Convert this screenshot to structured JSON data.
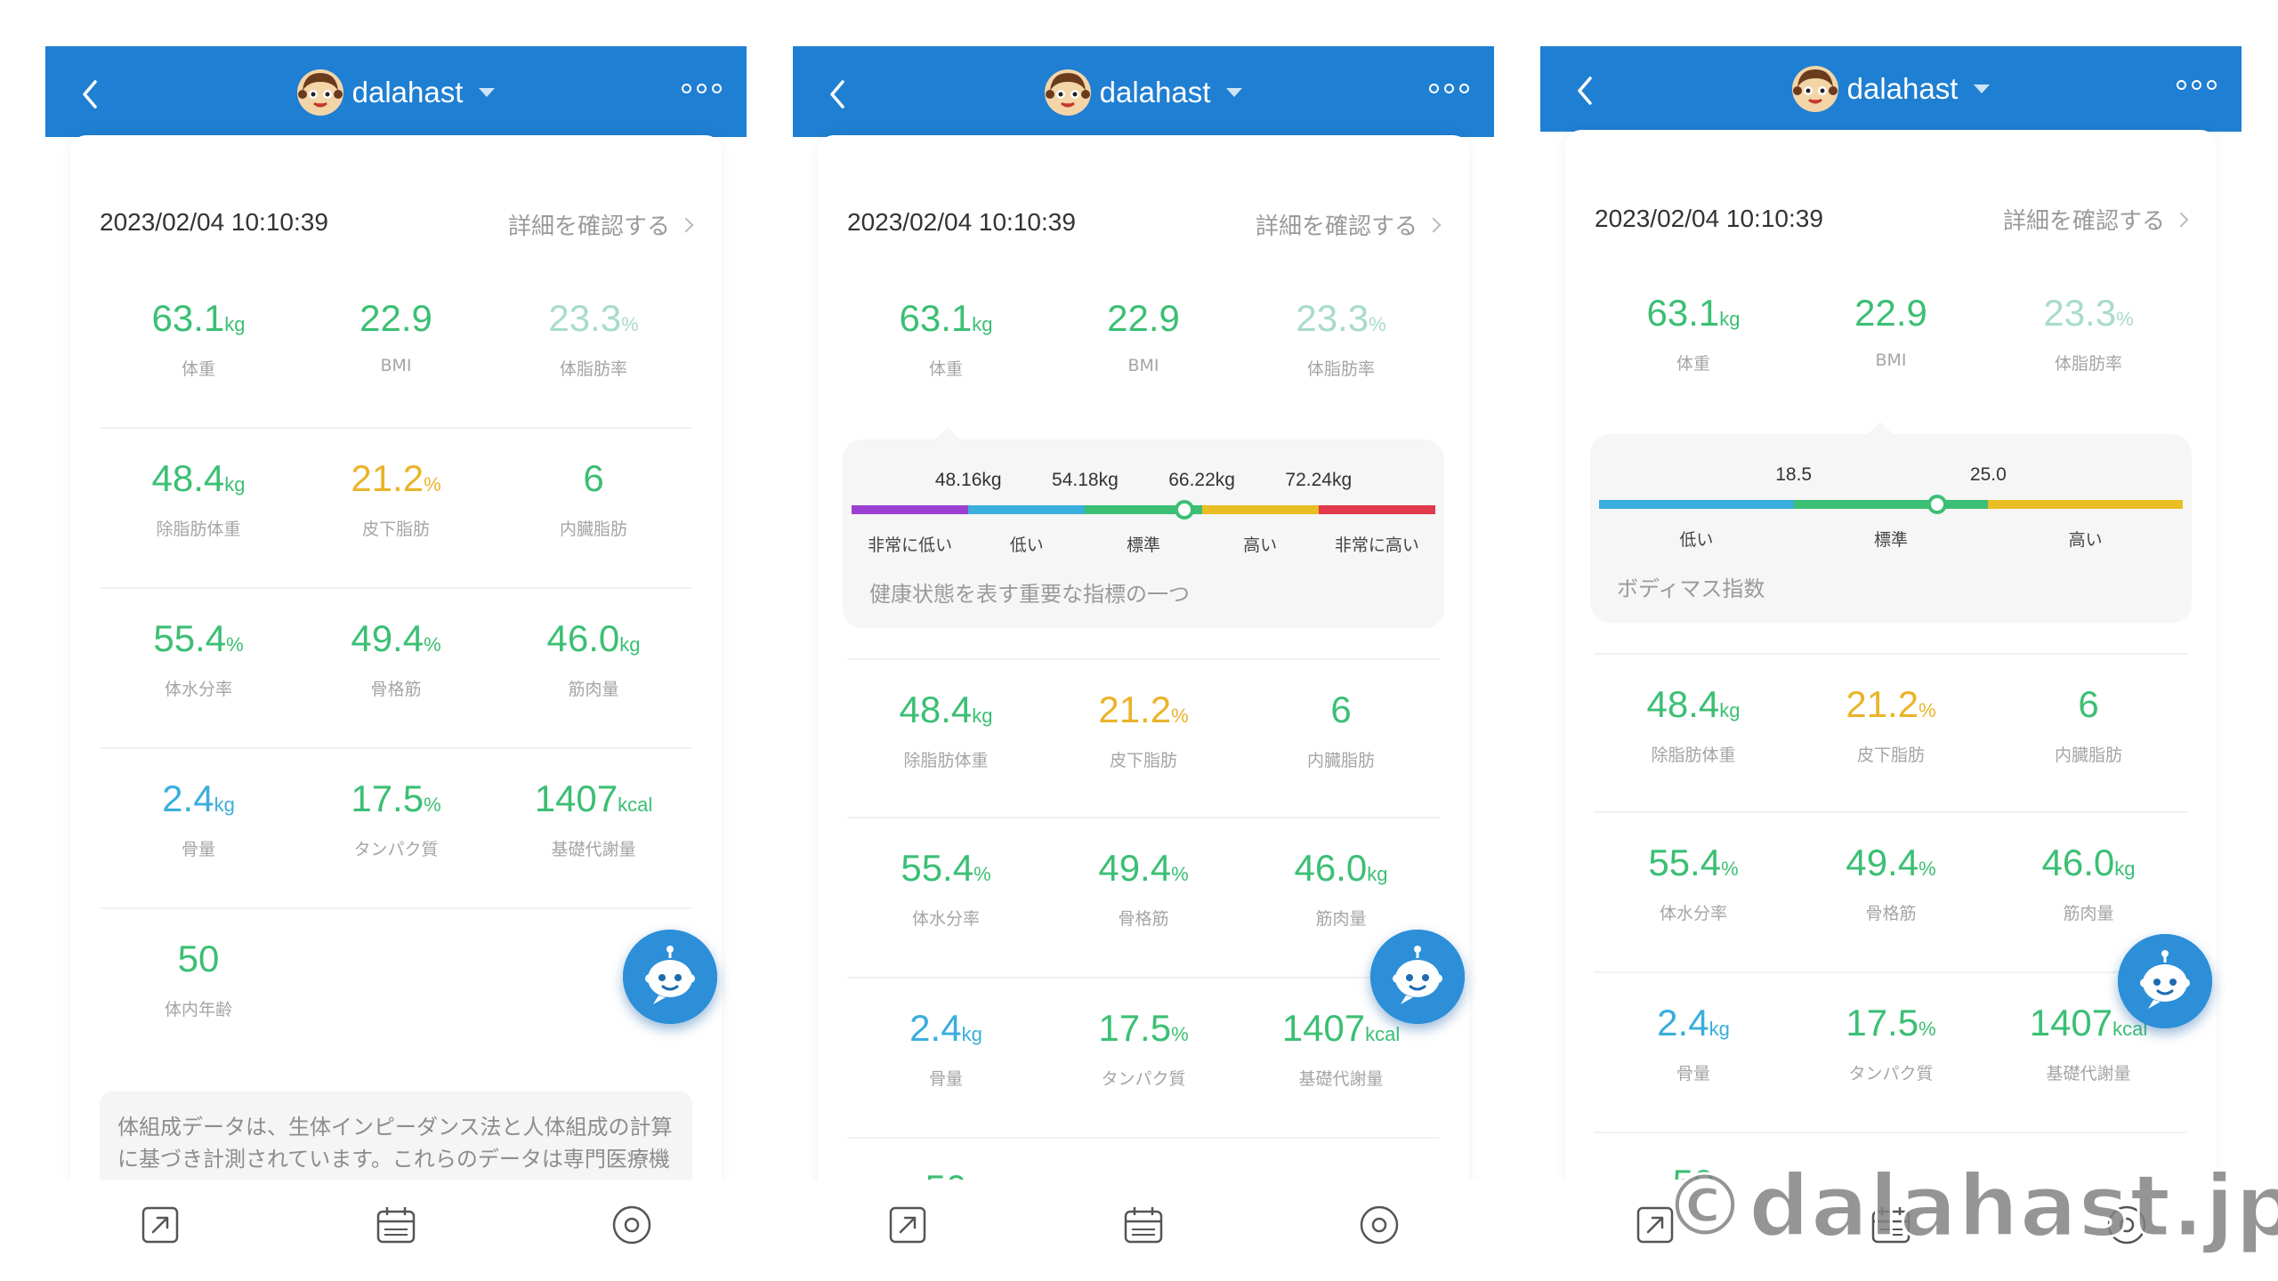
{
  "user": {
    "name": "dalahast"
  },
  "card": {
    "date": "2023/02/04 10:10:39",
    "detail_label": "詳細を確認する"
  },
  "metrics": {
    "weight": {
      "value": "63.1",
      "unit": "kg",
      "label": "体重"
    },
    "bmi": {
      "value": "22.9",
      "unit": "",
      "label": "BMI"
    },
    "body_fat": {
      "value": "23.3",
      "unit": "%",
      "label": "体脂肪率"
    },
    "lean_mass": {
      "value": "48.4",
      "unit": "kg",
      "label": "除脂肪体重"
    },
    "subcutaneous_fat": {
      "value": "21.2",
      "unit": "%",
      "label": "皮下脂肪"
    },
    "visceral_fat": {
      "value": "6",
      "unit": "",
      "label": "内臓脂肪"
    },
    "body_water": {
      "value": "55.4",
      "unit": "%",
      "label": "体水分率"
    },
    "skeletal_muscle": {
      "value": "49.4",
      "unit": "%",
      "label": "骨格筋"
    },
    "muscle_mass": {
      "value": "46.0",
      "unit": "kg",
      "label": "筋肉量"
    },
    "bone_mass": {
      "value": "2.4",
      "unit": "kg",
      "label": "骨量"
    },
    "protein": {
      "value": "17.5",
      "unit": "%",
      "label": "タンパク質"
    },
    "bmr": {
      "value": "1407",
      "unit": "kcal",
      "label": "基礎代謝量"
    },
    "body_age": {
      "value": "50",
      "unit": "",
      "label": "体内年齢"
    }
  },
  "weight_tooltip": {
    "thresholds": [
      "48.16kg",
      "54.18kg",
      "66.22kg",
      "72.24kg"
    ],
    "segments": [
      "非常に低い",
      "低い",
      "標準",
      "高い",
      "非常に高い"
    ],
    "segment_colors": [
      "#9b3fd0",
      "#3aaedc",
      "#3bbf74",
      "#e9be22",
      "#e23a4a"
    ],
    "marker_fraction": 0.57,
    "description": "健康状態を表す重要な指標の一つ"
  },
  "bmi_tooltip": {
    "thresholds": [
      "18.5",
      "25.0"
    ],
    "segments": [
      "低い",
      "標準",
      "高い"
    ],
    "segment_colors": [
      "#3aaedc",
      "#3bbf74",
      "#e9be22"
    ],
    "marker_fraction": 0.58,
    "description": "ボディマス指数"
  },
  "note_text": "体組成データは、生体インピーダンス法と人体組成の計算に基づき計測されています。これらのデータは専門医療機器での計測結果と同程度の精度で得られ、体重の確認や長期間の運動記録に最適です。ただし医学",
  "tabs": [
    "share-icon",
    "calendar-icon",
    "target-icon"
  ],
  "watermark": "©dalahast.jp",
  "colors": {
    "header": "#1f7fd2",
    "green": "#3bbf74",
    "yellow": "#eab42a",
    "blue": "#3aaedc"
  }
}
